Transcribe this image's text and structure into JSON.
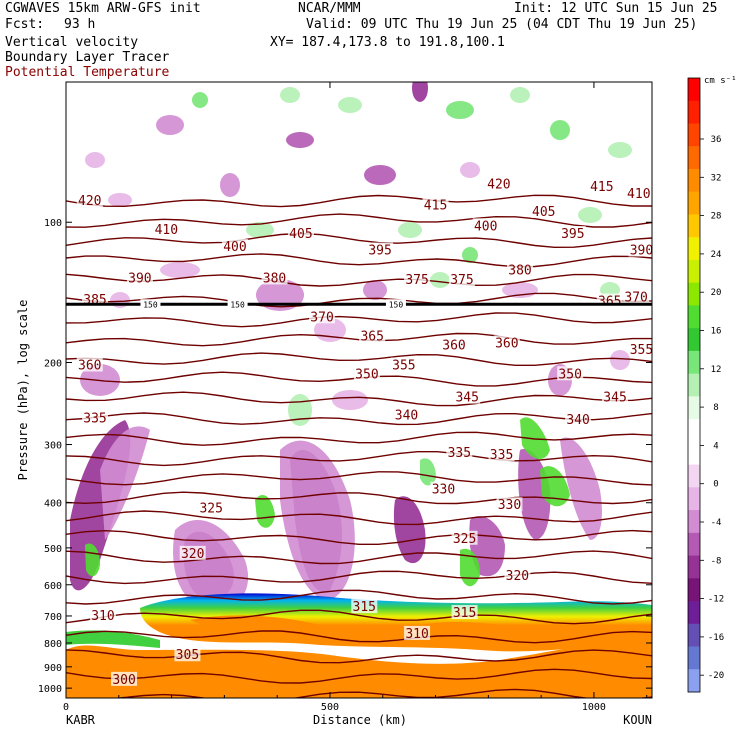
{
  "header": {
    "model": "CGWAVES 15km ARW-GFS init",
    "fcst_label": "Fcst:",
    "fcst_value": "93 h",
    "org": "NCAR/MMM",
    "init": "Init: 12 UTC Sun 15 Jun 25",
    "valid": "Valid: 09 UTC Thu 19 Jun 25 (04 CDT Thu 19 Jun 25)",
    "xy": "XY= 187.4,173.8 to 191.8,100.1",
    "field1": "Vertical velocity",
    "field2": "Boundary Layer Tracer",
    "field3": "Potential Temperature"
  },
  "colors": {
    "theta_line": "#6e0000",
    "field3_text": "#8b0000",
    "tropopause": "#000000"
  },
  "chart_data": {
    "type": "heatmap",
    "xlabel": "Distance (km)",
    "ylabel": "Pressure (hPa), log scale",
    "x_ticks": [
      0,
      500,
      1000
    ],
    "xlim": [
      0,
      1110
    ],
    "y_ticks": [
      100,
      200,
      300,
      400,
      500,
      600,
      700,
      800,
      900,
      1000
    ],
    "ylim": [
      1050,
      50
    ],
    "y_scale": "log",
    "left_endpoint": "KABR",
    "right_endpoint": "KOUN",
    "colorbar": {
      "unit": "cm s⁻¹",
      "labels": [
        36,
        32,
        28,
        24,
        20,
        16,
        12,
        8,
        4,
        0,
        -4,
        -8,
        -12,
        -16,
        -20
      ],
      "colors": [
        "#ff0000",
        "#ff2000",
        "#ff4500",
        "#ff6a00",
        "#ff8c00",
        "#ffa500",
        "#ffc800",
        "#f0f000",
        "#c8f000",
        "#8ce800",
        "#50dc30",
        "#32c832",
        "#78e678",
        "#b4f0b4",
        "#e6fae6",
        "#ffffff",
        "#ffffff",
        "#f2d6f2",
        "#e6b4e6",
        "#d28cd2",
        "#b45ab4",
        "#963296",
        "#781478",
        "#6e1e96",
        "#6450b4",
        "#6478d2",
        "#8ca0f0"
      ]
    },
    "tropopause_value": "150",
    "theta_contours": [
      {
        "value": "420",
        "x": 45,
        "p": 90
      },
      {
        "value": "410",
        "x": 190,
        "p": 104
      },
      {
        "value": "400",
        "x": 320,
        "p": 113
      },
      {
        "value": "405",
        "x": 445,
        "p": 106
      },
      {
        "value": "415",
        "x": 700,
        "p": 92
      },
      {
        "value": "420",
        "x": 820,
        "p": 83
      },
      {
        "value": "400",
        "x": 795,
        "p": 102
      },
      {
        "value": "405",
        "x": 905,
        "p": 95
      },
      {
        "value": "415",
        "x": 1015,
        "p": 84
      },
      {
        "value": "410",
        "x": 1085,
        "p": 87
      },
      {
        "value": "395",
        "x": 595,
        "p": 115
      },
      {
        "value": "395",
        "x": 960,
        "p": 106
      },
      {
        "value": "390",
        "x": 1090,
        "p": 115
      },
      {
        "value": "390",
        "x": 140,
        "p": 132
      },
      {
        "value": "380",
        "x": 395,
        "p": 132
      },
      {
        "value": "375",
        "x": 665,
        "p": 133
      },
      {
        "value": "375",
        "x": 750,
        "p": 133
      },
      {
        "value": "380",
        "x": 860,
        "p": 127
      },
      {
        "value": "385",
        "x": 55,
        "p": 147
      },
      {
        "value": "365",
        "x": 1030,
        "p": 148
      },
      {
        "value": "370",
        "x": 1080,
        "p": 145
      },
      {
        "value": "370",
        "x": 485,
        "p": 160
      },
      {
        "value": "365",
        "x": 580,
        "p": 176
      },
      {
        "value": "360",
        "x": 735,
        "p": 184
      },
      {
        "value": "360",
        "x": 835,
        "p": 182
      },
      {
        "value": "355",
        "x": 1090,
        "p": 188
      },
      {
        "value": "360",
        "x": 45,
        "p": 203
      },
      {
        "value": "355",
        "x": 640,
        "p": 203
      },
      {
        "value": "350",
        "x": 570,
        "p": 212
      },
      {
        "value": "350",
        "x": 955,
        "p": 212
      },
      {
        "value": "345",
        "x": 760,
        "p": 238
      },
      {
        "value": "345",
        "x": 1040,
        "p": 238
      },
      {
        "value": "340",
        "x": 645,
        "p": 260
      },
      {
        "value": "340",
        "x": 970,
        "p": 266
      },
      {
        "value": "335",
        "x": 55,
        "p": 264
      },
      {
        "value": "335",
        "x": 745,
        "p": 313
      },
      {
        "value": "335",
        "x": 825,
        "p": 316
      },
      {
        "value": "330",
        "x": 715,
        "p": 375
      },
      {
        "value": "330",
        "x": 840,
        "p": 405
      },
      {
        "value": "325",
        "x": 275,
        "p": 412
      },
      {
        "value": "325",
        "x": 755,
        "p": 478
      },
      {
        "value": "320",
        "x": 240,
        "p": 515
      },
      {
        "value": "320",
        "x": 855,
        "p": 575
      },
      {
        "value": "315",
        "x": 565,
        "p": 670
      },
      {
        "value": "315",
        "x": 755,
        "p": 690
      },
      {
        "value": "310",
        "x": 70,
        "p": 700
      },
      {
        "value": "310",
        "x": 665,
        "p": 765
      },
      {
        "value": "305",
        "x": 230,
        "p": 850
      },
      {
        "value": "300",
        "x": 110,
        "p": 960
      }
    ]
  }
}
